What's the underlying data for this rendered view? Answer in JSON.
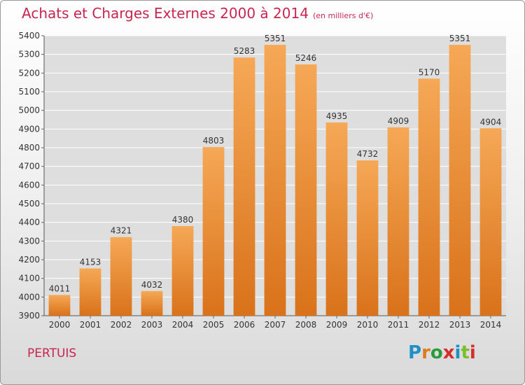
{
  "header": {
    "title": "Achats et Charges Externes 2000 à 2014",
    "subtitle": "(en milliers d'€)"
  },
  "footer": {
    "city": "PERTUIS",
    "logo_text": "Proxiti"
  },
  "colors": {
    "title": "#c8264f",
    "bar_top": "#f6a856",
    "bar_bottom": "#d9721a",
    "grid": "#ffffff",
    "logo": [
      "#1e90c8",
      "#e07b1c",
      "#2b9a3a",
      "#d62c2c",
      "#1e90c8",
      "#7bbf2a",
      "#d62c2c"
    ]
  },
  "chart_data": {
    "type": "bar",
    "categories": [
      "2000",
      "2001",
      "2002",
      "2003",
      "2004",
      "2005",
      "2006",
      "2007",
      "2008",
      "2009",
      "2010",
      "2011",
      "2012",
      "2013",
      "2014"
    ],
    "values": [
      4011,
      4153,
      4321,
      4032,
      4380,
      4803,
      5283,
      5351,
      5246,
      4935,
      4732,
      4909,
      5170,
      5351,
      4904
    ],
    "ylim": [
      3900,
      5400
    ],
    "yticks": [
      3900,
      4000,
      4100,
      4200,
      4300,
      4400,
      4500,
      4600,
      4700,
      4800,
      4900,
      5000,
      5100,
      5200,
      5300,
      5400
    ],
    "grid": true,
    "data_labels": true
  }
}
